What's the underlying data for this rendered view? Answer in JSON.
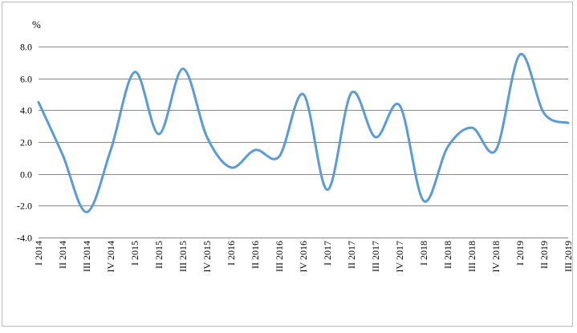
{
  "chart_data": {
    "type": "line",
    "title": "",
    "xlabel": "",
    "ylabel": "",
    "unit_label": "%",
    "categories": [
      "I 2014",
      "II 2014",
      "III 2014",
      "IV 2014",
      "I 2015",
      "II 2015",
      "III 2015",
      "IV 2015",
      "I 2016",
      "II 2016",
      "III 2016",
      "IV 2016",
      "I 2017",
      "II 2017",
      "III 2017",
      "IV 2017",
      "I 2018",
      "II 2018",
      "III 2018",
      "IV 2018",
      "I 2019",
      "II 2019",
      "III 2019"
    ],
    "series": [
      {
        "color": "#5b9bd5",
        "values": [
          4.5,
          1.2,
          -2.4,
          1.5,
          6.4,
          2.5,
          6.6,
          2.3,
          0.4,
          1.5,
          1.1,
          5.0,
          -1.0,
          5.1,
          2.3,
          4.3,
          -1.7,
          1.7,
          2.9,
          1.5,
          7.5,
          3.8,
          3.2
        ]
      }
    ],
    "ylim": [
      -4.0,
      8.0
    ],
    "yticks": [
      "-4.0",
      "-2.0",
      "0.0",
      "2.0",
      "4.0",
      "6.0",
      "8.0"
    ],
    "grid": true,
    "legend": "none"
  }
}
